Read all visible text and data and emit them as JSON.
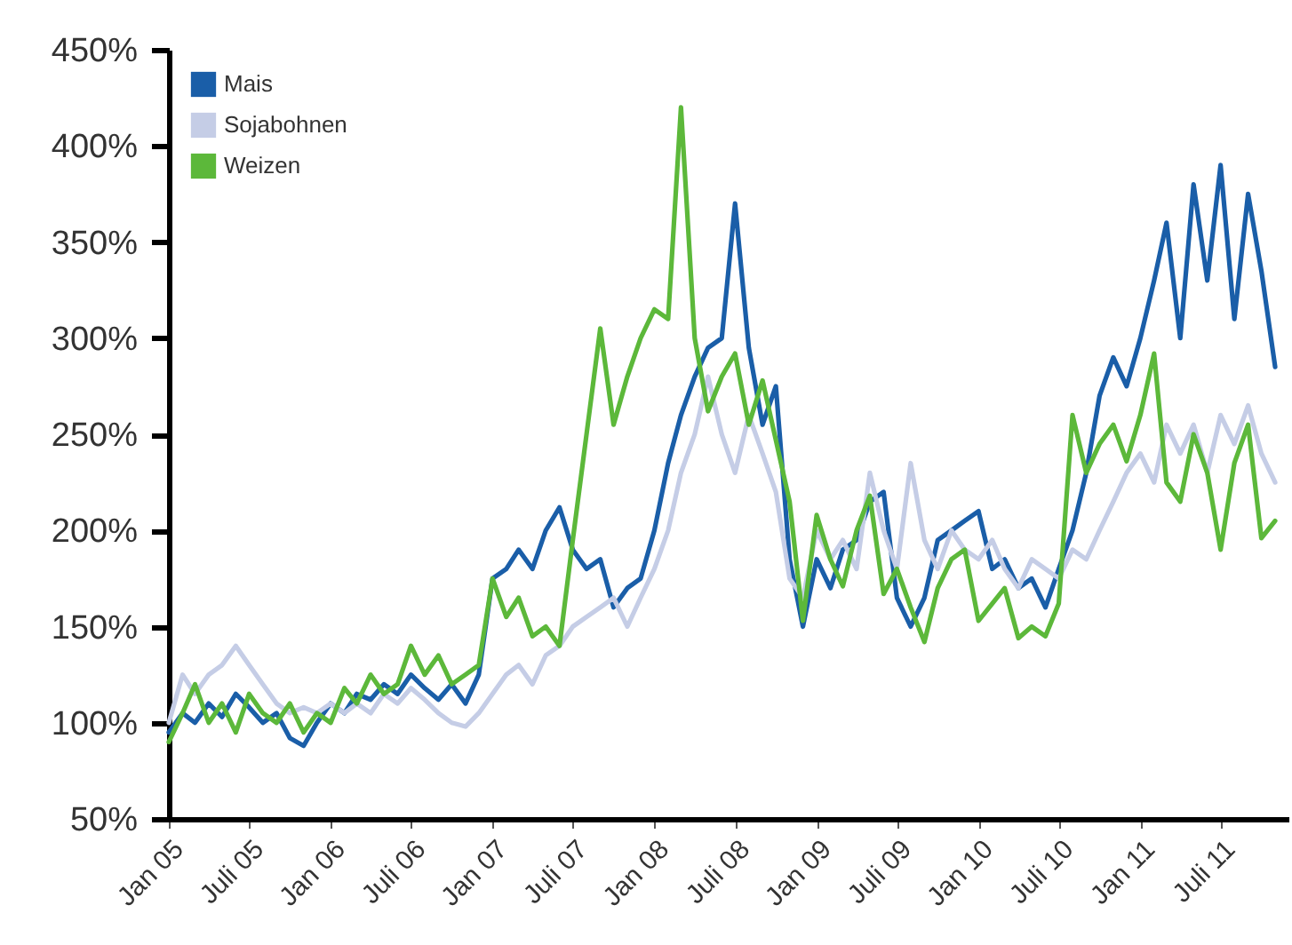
{
  "chart_data": {
    "type": "line",
    "x": [
      "2005-01",
      "2005-02",
      "2005-03",
      "2005-04",
      "2005-05",
      "2005-06",
      "2005-07",
      "2005-08",
      "2005-09",
      "2005-10",
      "2005-11",
      "2005-12",
      "2006-01",
      "2006-02",
      "2006-03",
      "2006-04",
      "2006-05",
      "2006-06",
      "2006-07",
      "2006-08",
      "2006-09",
      "2006-10",
      "2006-11",
      "2006-12",
      "2007-01",
      "2007-02",
      "2007-03",
      "2007-04",
      "2007-05",
      "2007-06",
      "2007-07",
      "2007-08",
      "2007-09",
      "2007-10",
      "2007-11",
      "2007-12",
      "2008-01",
      "2008-02",
      "2008-03",
      "2008-04",
      "2008-05",
      "2008-06",
      "2008-07",
      "2008-08",
      "2008-09",
      "2008-10",
      "2008-11",
      "2008-12",
      "2009-01",
      "2009-02",
      "2009-03",
      "2009-04",
      "2009-05",
      "2009-06",
      "2009-07",
      "2009-08",
      "2009-09",
      "2009-10",
      "2009-11",
      "2009-12",
      "2010-01",
      "2010-02",
      "2010-03",
      "2010-04",
      "2010-05",
      "2010-06",
      "2010-07",
      "2010-08",
      "2010-09",
      "2010-10",
      "2010-11",
      "2010-12",
      "2011-01",
      "2011-02",
      "2011-03",
      "2011-04",
      "2011-05",
      "2011-06",
      "2011-07",
      "2011-08",
      "2011-09",
      "2011-10",
      "2011-11"
    ],
    "series": [
      {
        "name": "Mais",
        "color": "#1a5ea8",
        "values": [
          95,
          105,
          100,
          110,
          103,
          115,
          108,
          100,
          105,
          92,
          88,
          100,
          110,
          105,
          115,
          112,
          120,
          115,
          125,
          118,
          112,
          120,
          110,
          125,
          175,
          180,
          190,
          180,
          200,
          212,
          190,
          180,
          185,
          160,
          170,
          175,
          200,
          235,
          260,
          280,
          295,
          300,
          370,
          295,
          255,
          275,
          185,
          150,
          185,
          170,
          190,
          195,
          215,
          220,
          165,
          150,
          165,
          195,
          200,
          205,
          210,
          180,
          185,
          170,
          175,
          160,
          180,
          200,
          230,
          270,
          290,
          275,
          300,
          330,
          360,
          300,
          380,
          330,
          390,
          310,
          375,
          335,
          285
        ]
      },
      {
        "name": "Sojabohnen",
        "color": "#c5cde6",
        "values": [
          100,
          125,
          115,
          125,
          130,
          140,
          130,
          120,
          110,
          105,
          108,
          105,
          110,
          105,
          110,
          105,
          115,
          110,
          118,
          112,
          105,
          100,
          98,
          105,
          115,
          125,
          130,
          120,
          135,
          140,
          150,
          155,
          160,
          165,
          150,
          165,
          180,
          200,
          230,
          250,
          280,
          250,
          230,
          260,
          240,
          220,
          175,
          165,
          200,
          185,
          195,
          180,
          230,
          200,
          180,
          235,
          195,
          180,
          200,
          190,
          185,
          195,
          180,
          170,
          185,
          180,
          175,
          190,
          185,
          200,
          215,
          230,
          240,
          225,
          255,
          240,
          255,
          230,
          260,
          245,
          265,
          240,
          225
        ]
      },
      {
        "name": "Weizen",
        "color": "#5cb83a",
        "values": [
          90,
          105,
          120,
          100,
          110,
          95,
          115,
          105,
          100,
          110,
          95,
          105,
          100,
          118,
          110,
          125,
          115,
          120,
          140,
          125,
          135,
          120,
          125,
          130,
          175,
          155,
          165,
          145,
          150,
          140,
          195,
          250,
          305,
          255,
          280,
          300,
          315,
          310,
          420,
          300,
          262,
          280,
          292,
          255,
          278,
          247,
          215,
          153,
          208,
          185,
          171,
          200,
          218,
          167,
          180,
          160,
          142,
          170,
          185,
          190,
          153,
          162,
          170,
          144,
          150,
          145,
          162,
          260,
          230,
          245,
          255,
          236,
          260,
          292,
          225,
          215,
          250,
          230,
          190,
          235,
          255,
          196,
          205
        ]
      }
    ],
    "xlim": [
      "2005-01",
      "2011-12"
    ],
    "xticks": [
      {
        "value": "2005-01",
        "label": "Jan 05"
      },
      {
        "value": "2005-07",
        "label": "Juli 05"
      },
      {
        "value": "2006-01",
        "label": "Jan 06"
      },
      {
        "value": "2006-07",
        "label": "Juli 06"
      },
      {
        "value": "2007-01",
        "label": "Jan 07"
      },
      {
        "value": "2007-07",
        "label": "Juli 07"
      },
      {
        "value": "2008-01",
        "label": "Jan 08"
      },
      {
        "value": "2008-07",
        "label": "Juli 08"
      },
      {
        "value": "2009-01",
        "label": "Jan 09"
      },
      {
        "value": "2009-07",
        "label": "Juli 09"
      },
      {
        "value": "2010-01",
        "label": "Jan 10"
      },
      {
        "value": "2010-07",
        "label": "Juli 10"
      },
      {
        "value": "2011-01",
        "label": "Jan 11"
      },
      {
        "value": "2011-07",
        "label": "Juli 11"
      }
    ],
    "ylim": [
      50,
      450
    ],
    "yticks": [
      {
        "value": 50,
        "label": "50%"
      },
      {
        "value": 100,
        "label": "100%"
      },
      {
        "value": 150,
        "label": "150%"
      },
      {
        "value": 200,
        "label": "200%"
      },
      {
        "value": 250,
        "label": "250%"
      },
      {
        "value": 300,
        "label": "300%"
      },
      {
        "value": 350,
        "label": "350%"
      },
      {
        "value": 400,
        "label": "400%"
      },
      {
        "value": 450,
        "label": "450%"
      }
    ],
    "grid": false,
    "legend": "top left",
    "marker": "none",
    "line_style": "solid"
  }
}
